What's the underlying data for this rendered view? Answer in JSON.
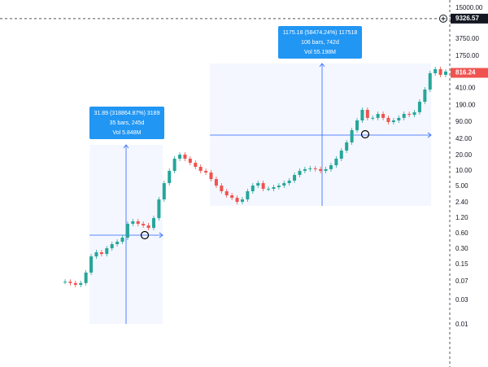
{
  "chart_data": {
    "type": "candlestick",
    "log_scale": true,
    "up_color": "#26a69a",
    "down_color": "#ef5350",
    "ylim": [
      0.0015,
      21500
    ],
    "yticks": [
      {
        "value": 15000,
        "label": "15000.00"
      },
      {
        "value": 3750,
        "label": "3750.00"
      },
      {
        "value": 1750,
        "label": "1750.00"
      },
      {
        "value": 410,
        "label": "410.00"
      },
      {
        "value": 190,
        "label": "190.00"
      },
      {
        "value": 90,
        "label": "90.00"
      },
      {
        "value": 42,
        "label": "42.00"
      },
      {
        "value": 20,
        "label": "20.00"
      },
      {
        "value": 10,
        "label": "10.00"
      },
      {
        "value": 5,
        "label": "5.00"
      },
      {
        "value": 2.4,
        "label": "2.40"
      },
      {
        "value": 1.2,
        "label": "1.20"
      },
      {
        "value": 0.6,
        "label": "0.60"
      },
      {
        "value": 0.3,
        "label": "0.30"
      },
      {
        "value": 0.15,
        "label": "0.15"
      },
      {
        "value": 0.07,
        "label": "0.07"
      },
      {
        "value": 0.03,
        "label": "0.03"
      },
      {
        "value": 0.01,
        "label": "0.01"
      }
    ],
    "values": [
      0.069,
      0.065,
      0.06,
      0.065,
      0.104,
      0.215,
      0.259,
      0.24,
      0.31,
      0.373,
      0.416,
      0.5,
      0.93,
      1.04,
      0.93,
      0.865,
      0.774,
      1.2,
      2.78,
      5.78,
      10,
      17.3,
      20.8,
      17.3,
      14.4,
      12,
      10,
      9.3,
      6.93,
      5.17,
      4.01,
      3.34,
      2.99,
      2.49,
      2.78,
      4.01,
      5.17,
      5.78,
      4.48,
      4.48,
      4.82,
      5.17,
      5.78,
      6.46,
      8.33,
      10,
      10.8,
      11.2,
      10.8,
      10,
      10.8,
      12.9,
      17.3,
      24.9,
      35.9,
      62.2,
      96.4,
      155,
      108,
      108,
      129,
      108,
      89.6,
      96.4,
      108,
      129,
      124,
      139,
      223,
      386,
      803,
      965,
      747,
      865
    ],
    "price_labels": [
      {
        "value": 9326.57,
        "label": "9326.57",
        "color": "#131722"
      },
      {
        "value": 816.24,
        "label": "816.24",
        "color": "#ef5350"
      }
    ],
    "measurements": [
      {
        "lines": [
          "31.89 (318864.87%) 3189",
          "35 bars, 245d",
          "Vol 5.848M"
        ]
      },
      {
        "lines": [
          "1175.18 (58474.24%) 117518",
          "106 bars, 742d",
          "Vol 55.198M"
        ]
      }
    ]
  }
}
